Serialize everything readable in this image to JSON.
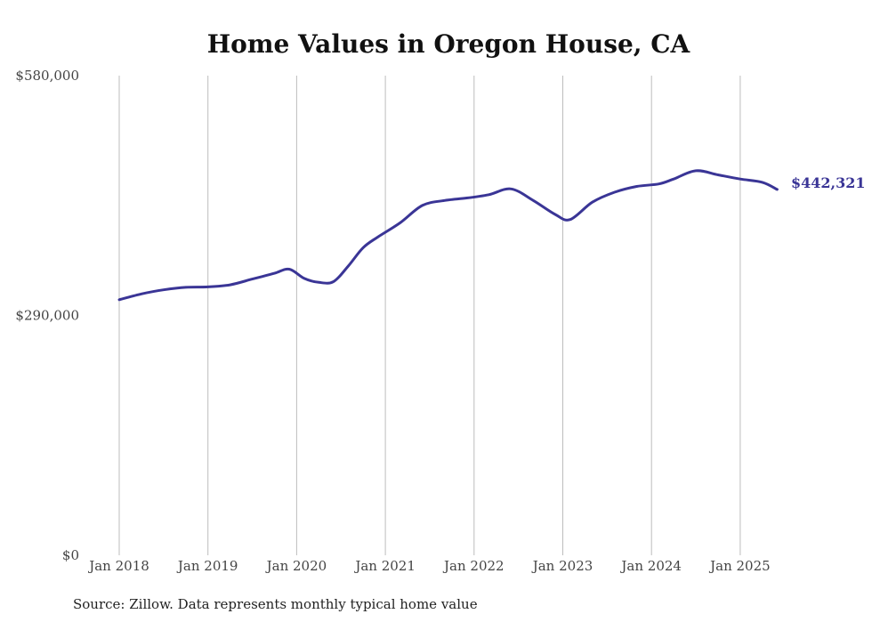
{
  "colors": {
    "series": "#3a3596",
    "grid": "#bdbdbd",
    "text": "#444444",
    "background": "#ffffff"
  },
  "chart_data": {
    "type": "line",
    "title": "Home Values in Oregon House, CA",
    "xlabel": "",
    "ylabel": "",
    "ylim": [
      0,
      580000
    ],
    "y_ticks": [
      {
        "value": 0,
        "label": "$0"
      },
      {
        "value": 290000,
        "label": "$290,000"
      },
      {
        "value": 580000,
        "label": "$580,000"
      }
    ],
    "x_ticks": [
      {
        "value": "2018-01",
        "label": "Jan 2018"
      },
      {
        "value": "2019-01",
        "label": "Jan 2019"
      },
      {
        "value": "2020-01",
        "label": "Jan 2020"
      },
      {
        "value": "2021-01",
        "label": "Jan 2021"
      },
      {
        "value": "2022-01",
        "label": "Jan 2022"
      },
      {
        "value": "2023-01",
        "label": "Jan 2023"
      },
      {
        "value": "2024-01",
        "label": "Jan 2024"
      },
      {
        "value": "2025-01",
        "label": "Jan 2025"
      }
    ],
    "grid": "vertical",
    "end_label": "$442,321",
    "source": "Source: Zillow. Data represents monthly typical home value",
    "series": [
      {
        "x": [
          "2018-01",
          "2018-04",
          "2018-07",
          "2018-10",
          "2019-01",
          "2019-04",
          "2019-07",
          "2019-10",
          "2019-12",
          "2020-02",
          "2020-04",
          "2020-06",
          "2020-08",
          "2020-10",
          "2020-12",
          "2021-03",
          "2021-06",
          "2021-09",
          "2021-12",
          "2022-03",
          "2022-06",
          "2022-09",
          "2022-12",
          "2023-02",
          "2023-05",
          "2023-08",
          "2023-11",
          "2024-02",
          "2024-04",
          "2024-07",
          "2024-10",
          "2025-01",
          "2025-04",
          "2025-06"
        ],
        "y": [
          309000,
          316000,
          321000,
          324000,
          324500,
          327000,
          334000,
          341000,
          346000,
          335000,
          330000,
          331000,
          350000,
          372000,
          385000,
          402000,
          423000,
          429000,
          432000,
          436000,
          443000,
          429000,
          412000,
          406000,
          427000,
          439000,
          446000,
          449000,
          455000,
          465000,
          460000,
          455000,
          451000,
          442321
        ]
      }
    ]
  }
}
